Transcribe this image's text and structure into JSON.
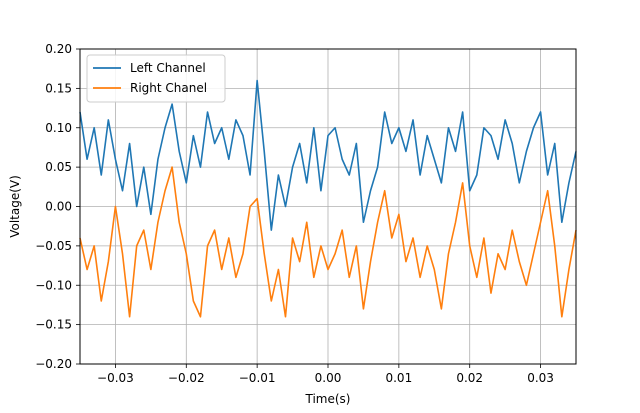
{
  "chart_data": {
    "type": "line",
    "xlabel": "Time(s)",
    "ylabel": "Voltage(V)",
    "xlim": [
      -0.035,
      0.035
    ],
    "ylim": [
      -0.2,
      0.2
    ],
    "xticks": [
      -0.03,
      -0.02,
      -0.01,
      0.0,
      0.01,
      0.02,
      0.03
    ],
    "xtick_labels": [
      "−0.03",
      "−0.02",
      "−0.01",
      "0.00",
      "0.01",
      "0.02",
      "0.03"
    ],
    "yticks": [
      -0.2,
      -0.15,
      -0.1,
      -0.05,
      0.0,
      0.05,
      0.1,
      0.15,
      0.2
    ],
    "ytick_labels": [
      "−0.20",
      "−0.15",
      "−0.10",
      "−0.05",
      "0.00",
      "0.05",
      "0.10",
      "0.15",
      "0.20"
    ],
    "grid": true,
    "legend_position": "top-left",
    "series": [
      {
        "name": "Left Channel",
        "color": "#1f77b4",
        "x": [
          -0.035,
          -0.034,
          -0.033,
          -0.032,
          -0.031,
          -0.03,
          -0.029,
          -0.028,
          -0.027,
          -0.026,
          -0.025,
          -0.024,
          -0.023,
          -0.022,
          -0.021,
          -0.02,
          -0.019,
          -0.018,
          -0.017,
          -0.016,
          -0.015,
          -0.014,
          -0.013,
          -0.012,
          -0.011,
          -0.01,
          -0.009,
          -0.008,
          -0.007,
          -0.006,
          -0.005,
          -0.004,
          -0.003,
          -0.002,
          -0.001,
          0.0,
          0.001,
          0.002,
          0.003,
          0.004,
          0.005,
          0.006,
          0.007,
          0.008,
          0.009,
          0.01,
          0.011,
          0.012,
          0.013,
          0.014,
          0.015,
          0.016,
          0.017,
          0.018,
          0.019,
          0.02,
          0.021,
          0.022,
          0.023,
          0.024,
          0.025,
          0.026,
          0.027,
          0.028,
          0.029,
          0.03,
          0.031,
          0.032,
          0.033,
          0.034,
          0.035
        ],
        "y": [
          0.12,
          0.06,
          0.1,
          0.04,
          0.11,
          0.06,
          0.02,
          0.08,
          0.0,
          0.05,
          -0.01,
          0.06,
          0.1,
          0.13,
          0.07,
          0.03,
          0.09,
          0.05,
          0.12,
          0.08,
          0.1,
          0.06,
          0.11,
          0.09,
          0.04,
          0.16,
          0.07,
          -0.03,
          0.04,
          0.0,
          0.05,
          0.08,
          0.03,
          0.1,
          0.02,
          0.09,
          0.1,
          0.06,
          0.04,
          0.08,
          -0.02,
          0.02,
          0.05,
          0.12,
          0.08,
          0.1,
          0.07,
          0.11,
          0.04,
          0.09,
          0.06,
          0.03,
          0.1,
          0.07,
          0.12,
          0.02,
          0.04,
          0.1,
          0.09,
          0.06,
          0.11,
          0.08,
          0.03,
          0.07,
          0.1,
          0.12,
          0.04,
          0.08,
          -0.02,
          0.03,
          0.07
        ]
      },
      {
        "name": "Right Chanel",
        "color": "#ff7f0e",
        "x": [
          -0.035,
          -0.034,
          -0.033,
          -0.032,
          -0.031,
          -0.03,
          -0.029,
          -0.028,
          -0.027,
          -0.026,
          -0.025,
          -0.024,
          -0.023,
          -0.022,
          -0.021,
          -0.02,
          -0.019,
          -0.018,
          -0.017,
          -0.016,
          -0.015,
          -0.014,
          -0.013,
          -0.012,
          -0.011,
          -0.01,
          -0.009,
          -0.008,
          -0.007,
          -0.006,
          -0.005,
          -0.004,
          -0.003,
          -0.002,
          -0.001,
          0.0,
          0.001,
          0.002,
          0.003,
          0.004,
          0.005,
          0.006,
          0.007,
          0.008,
          0.009,
          0.01,
          0.011,
          0.012,
          0.013,
          0.014,
          0.015,
          0.016,
          0.017,
          0.018,
          0.019,
          0.02,
          0.021,
          0.022,
          0.023,
          0.024,
          0.025,
          0.026,
          0.027,
          0.028,
          0.029,
          0.03,
          0.031,
          0.032,
          0.033,
          0.034,
          0.035
        ],
        "y": [
          -0.04,
          -0.08,
          -0.05,
          -0.12,
          -0.07,
          0.0,
          -0.06,
          -0.14,
          -0.05,
          -0.03,
          -0.08,
          -0.02,
          0.02,
          0.05,
          -0.02,
          -0.06,
          -0.12,
          -0.14,
          -0.05,
          -0.03,
          -0.08,
          -0.04,
          -0.09,
          -0.06,
          0.0,
          0.01,
          -0.06,
          -0.12,
          -0.08,
          -0.14,
          -0.04,
          -0.07,
          -0.02,
          -0.09,
          -0.05,
          -0.08,
          -0.06,
          -0.03,
          -0.09,
          -0.05,
          -0.13,
          -0.07,
          -0.02,
          0.02,
          -0.04,
          -0.01,
          -0.07,
          -0.04,
          -0.09,
          -0.05,
          -0.08,
          -0.13,
          -0.06,
          -0.02,
          0.03,
          -0.05,
          -0.09,
          -0.04,
          -0.11,
          -0.06,
          -0.08,
          -0.03,
          -0.07,
          -0.1,
          -0.06,
          -0.02,
          0.02,
          -0.05,
          -0.14,
          -0.08,
          -0.03
        ]
      }
    ]
  }
}
